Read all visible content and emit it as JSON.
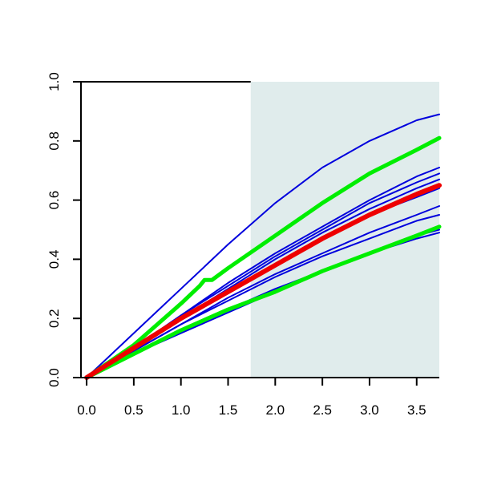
{
  "chart_data": {
    "type": "line",
    "title": "",
    "xlabel": "",
    "ylabel": "",
    "xlim": [
      -0.06,
      3.74
    ],
    "ylim": [
      0.0,
      1.0
    ],
    "x_ticks": [
      "0.0",
      "0.5",
      "1.0",
      "1.5",
      "2.0",
      "2.5",
      "3.0",
      "3.5"
    ],
    "y_ticks": [
      "0.0",
      "0.2",
      "0.4",
      "0.6",
      "0.8",
      "1.0"
    ],
    "grid": false,
    "legend": "none",
    "shaded_region": {
      "x_start": 1.74,
      "x_end": 3.74,
      "color": "#e0ecec"
    },
    "series": [
      {
        "color": "#0000dd",
        "width": 2,
        "x": [
          0,
          0.5,
          1.0,
          1.5,
          2.0,
          2.5,
          3.0,
          3.5,
          3.74
        ],
        "y": [
          0,
          0.15,
          0.3,
          0.45,
          0.59,
          0.71,
          0.8,
          0.87,
          0.89
        ]
      },
      {
        "color": "#0000dd",
        "width": 2,
        "x": [
          0,
          0.5,
          1.0,
          1.5,
          2.0,
          2.5,
          3.0,
          3.5,
          3.74
        ],
        "y": [
          0,
          0.1,
          0.21,
          0.32,
          0.42,
          0.51,
          0.6,
          0.68,
          0.71
        ]
      },
      {
        "color": "#0000dd",
        "width": 2,
        "x": [
          0,
          0.5,
          1.0,
          1.5,
          2.0,
          2.5,
          3.0,
          3.5,
          3.74
        ],
        "y": [
          0,
          0.1,
          0.21,
          0.31,
          0.41,
          0.5,
          0.59,
          0.66,
          0.69
        ]
      },
      {
        "color": "#0000dd",
        "width": 2,
        "x": [
          0,
          0.5,
          1.0,
          1.5,
          2.0,
          2.5,
          3.0,
          3.5,
          3.74
        ],
        "y": [
          0,
          0.1,
          0.2,
          0.3,
          0.4,
          0.49,
          0.57,
          0.64,
          0.67
        ]
      },
      {
        "color": "#0000dd",
        "width": 2,
        "x": [
          0,
          0.5,
          1.0,
          1.5,
          2.0,
          2.5,
          3.0,
          3.5,
          3.74
        ],
        "y": [
          0,
          0.1,
          0.2,
          0.29,
          0.38,
          0.47,
          0.55,
          0.61,
          0.64
        ]
      },
      {
        "color": "#0000dd",
        "width": 2,
        "x": [
          0,
          0.5,
          1.0,
          1.5,
          2.0,
          2.5,
          3.0,
          3.5,
          3.74
        ],
        "y": [
          0,
          0.09,
          0.18,
          0.27,
          0.35,
          0.42,
          0.49,
          0.55,
          0.58
        ]
      },
      {
        "color": "#0000dd",
        "width": 2,
        "x": [
          0,
          0.5,
          1.0,
          1.5,
          2.0,
          2.5,
          3.0,
          3.5,
          3.74
        ],
        "y": [
          0,
          0.09,
          0.18,
          0.26,
          0.34,
          0.41,
          0.47,
          0.53,
          0.55
        ]
      },
      {
        "color": "#0000dd",
        "width": 2,
        "x": [
          0,
          0.5,
          1.0,
          1.5,
          2.0,
          2.5,
          3.0,
          3.5,
          3.74
        ],
        "y": [
          0,
          0.08,
          0.16,
          0.23,
          0.3,
          0.36,
          0.42,
          0.48,
          0.5
        ]
      },
      {
        "color": "#0000dd",
        "width": 2,
        "x": [
          0,
          0.5,
          1.0,
          1.5,
          2.0,
          2.5,
          3.0,
          3.5,
          3.74
        ],
        "y": [
          0,
          0.08,
          0.15,
          0.22,
          0.29,
          0.36,
          0.42,
          0.47,
          0.49
        ]
      },
      {
        "color": "#00ee00",
        "width": 5,
        "x": [
          0,
          0.5,
          1.0,
          1.2,
          1.25,
          1.33,
          1.5,
          2.0,
          2.5,
          3.0,
          3.5,
          3.74
        ],
        "y": [
          0,
          0.11,
          0.25,
          0.31,
          0.33,
          0.33,
          0.37,
          0.48,
          0.59,
          0.69,
          0.77,
          0.81
        ]
      },
      {
        "color": "#00ee00",
        "width": 5,
        "x": [
          0,
          0.5,
          1.0,
          1.5,
          2.0,
          2.5,
          3.0,
          3.5,
          3.74
        ],
        "y": [
          0,
          0.08,
          0.16,
          0.23,
          0.29,
          0.36,
          0.42,
          0.48,
          0.51
        ]
      },
      {
        "color": "#ee0000",
        "width": 6,
        "x": [
          0,
          0.5,
          1.0,
          1.5,
          2.0,
          2.5,
          3.0,
          3.5,
          3.74
        ],
        "y": [
          0,
          0.1,
          0.2,
          0.29,
          0.38,
          0.47,
          0.55,
          0.62,
          0.65
        ]
      }
    ]
  }
}
